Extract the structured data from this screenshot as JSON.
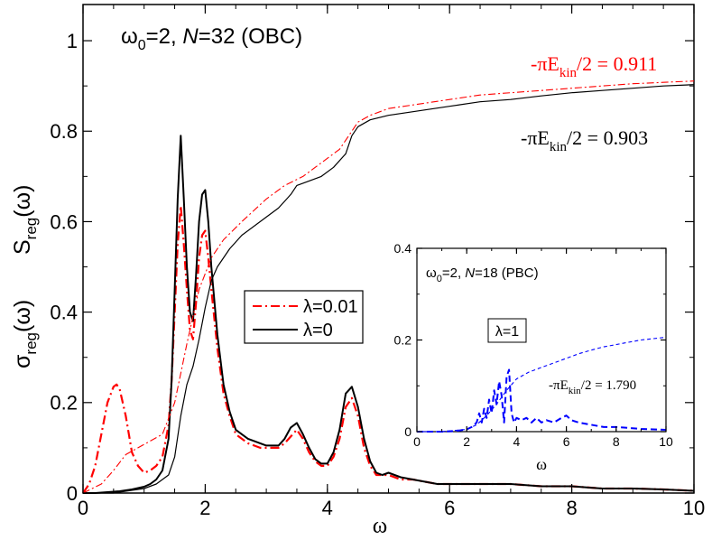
{
  "colors": {
    "axis": "#000000",
    "main_lambda001": "#ff0000",
    "main_lambda0": "#000000",
    "inset_pbc": "#0000ff",
    "annotation_red": "#ff0000",
    "annotation_black": "#000000"
  },
  "main": {
    "title_prefix": "ω",
    "title_sub": "0",
    "title_mid": "=2, ",
    "title_N": "N",
    "title_tail": "=32 (OBC)",
    "xlabel": "ω",
    "ylabel_top_main": "S",
    "ylabel_top_sub": "reg",
    "ylabel_top_tail": "(ω)",
    "ylabel_bot_main": "σ",
    "ylabel_bot_sub": "reg",
    "ylabel_bot_tail": "(ω)",
    "xticks": [
      "0",
      "2",
      "4",
      "6",
      "8",
      "10"
    ],
    "yticks": [
      "0",
      "0.2",
      "0.4",
      "0.6",
      "0.8",
      "1"
    ],
    "ann_red_prefix": "-πE",
    "ann_red_sub": "kin",
    "ann_red_tail": "/2 = 0.911",
    "ann_black_prefix": "-πE",
    "ann_black_sub": "kin",
    "ann_black_tail": "/2 = 0.903",
    "legend": [
      {
        "label": "λ=0.01",
        "style": "dash-dot",
        "color": "#ff0000"
      },
      {
        "label": "λ=0",
        "style": "solid",
        "color": "#000000"
      }
    ]
  },
  "inset": {
    "title_prefix": "ω",
    "title_sub": "0",
    "title_mid": "=2, ",
    "title_N": "N",
    "title_tail": "=18 (PBC)",
    "box_label": "λ=1",
    "xlabel": "ω",
    "xticks": [
      "0",
      "2",
      "4",
      "6",
      "8",
      "10"
    ],
    "yticks": [
      "0",
      "0.2",
      "0.4"
    ],
    "ann_prefix": "-πE",
    "ann_sub": "kin",
    "ann_tail": "/2 = 1.790"
  },
  "chart_data": [
    {
      "type": "line",
      "panel": "main",
      "xlim": [
        0,
        10
      ],
      "ylim": [
        0,
        1.08
      ],
      "grid": false,
      "legend_placement": "center",
      "series": [
        {
          "name": "λ=0.01",
          "kind": "sigma_reg",
          "style": "dash-dot-thick",
          "x": [
            0,
            0.1,
            0.2,
            0.3,
            0.4,
            0.5,
            0.55,
            0.6,
            0.7,
            0.8,
            0.9,
            1.0,
            1.1,
            1.2,
            1.3,
            1.4,
            1.45,
            1.5,
            1.55,
            1.6,
            1.65,
            1.7,
            1.75,
            1.8,
            1.85,
            1.9,
            1.95,
            2.0,
            2.05,
            2.1,
            2.2,
            2.3,
            2.4,
            2.5,
            2.6,
            2.7,
            2.8,
            2.9,
            3.0,
            3.1,
            3.2,
            3.3,
            3.4,
            3.5,
            3.6,
            3.7,
            3.8,
            3.9,
            4.0,
            4.1,
            4.2,
            4.3,
            4.4,
            4.5,
            4.6,
            4.7,
            4.8,
            4.9,
            5.0,
            5.2,
            5.4,
            5.6,
            5.8,
            6.0,
            6.5,
            7.0,
            7.5,
            8.0,
            8.5,
            9.0,
            9.5,
            10.0
          ],
          "y": [
            0.0,
            0.02,
            0.06,
            0.13,
            0.2,
            0.235,
            0.24,
            0.23,
            0.17,
            0.09,
            0.06,
            0.045,
            0.05,
            0.06,
            0.08,
            0.15,
            0.25,
            0.4,
            0.55,
            0.635,
            0.55,
            0.45,
            0.36,
            0.34,
            0.42,
            0.52,
            0.57,
            0.58,
            0.52,
            0.45,
            0.32,
            0.22,
            0.17,
            0.13,
            0.12,
            0.11,
            0.105,
            0.1,
            0.1,
            0.1,
            0.1,
            0.11,
            0.125,
            0.14,
            0.12,
            0.09,
            0.07,
            0.06,
            0.06,
            0.08,
            0.12,
            0.19,
            0.21,
            0.17,
            0.1,
            0.06,
            0.04,
            0.04,
            0.04,
            0.03,
            0.03,
            0.025,
            0.02,
            0.02,
            0.02,
            0.02,
            0.015,
            0.015,
            0.01,
            0.01,
            0.008,
            0.005
          ]
        },
        {
          "name": "λ=0",
          "kind": "sigma_reg",
          "style": "solid",
          "x": [
            0,
            0.2,
            0.4,
            0.6,
            0.8,
            1.0,
            1.1,
            1.2,
            1.3,
            1.4,
            1.45,
            1.5,
            1.55,
            1.6,
            1.65,
            1.7,
            1.75,
            1.8,
            1.85,
            1.9,
            1.95,
            2.0,
            2.05,
            2.1,
            2.2,
            2.3,
            2.4,
            2.5,
            2.6,
            2.7,
            2.8,
            2.9,
            3.0,
            3.1,
            3.2,
            3.3,
            3.4,
            3.5,
            3.6,
            3.7,
            3.8,
            3.9,
            4.0,
            4.1,
            4.2,
            4.3,
            4.4,
            4.5,
            4.6,
            4.7,
            4.8,
            4.9,
            5.0,
            5.2,
            5.4,
            5.6,
            5.8,
            6.0,
            6.5,
            7.0,
            7.5,
            8.0,
            8.5,
            9.0,
            9.5,
            10.0
          ],
          "y": [
            0.0,
            0.0,
            0.002,
            0.004,
            0.008,
            0.014,
            0.02,
            0.03,
            0.05,
            0.12,
            0.25,
            0.45,
            0.65,
            0.79,
            0.65,
            0.5,
            0.4,
            0.38,
            0.48,
            0.6,
            0.66,
            0.67,
            0.6,
            0.5,
            0.35,
            0.24,
            0.18,
            0.14,
            0.13,
            0.12,
            0.115,
            0.11,
            0.105,
            0.105,
            0.105,
            0.12,
            0.145,
            0.155,
            0.13,
            0.1,
            0.075,
            0.065,
            0.065,
            0.09,
            0.14,
            0.22,
            0.235,
            0.19,
            0.12,
            0.07,
            0.045,
            0.04,
            0.045,
            0.035,
            0.03,
            0.025,
            0.02,
            0.02,
            0.02,
            0.02,
            0.015,
            0.015,
            0.01,
            0.01,
            0.008,
            0.005
          ]
        },
        {
          "name": "λ=0.01",
          "kind": "S_reg",
          "style": "dash-dot-thin",
          "x": [
            0,
            0.3,
            0.5,
            0.7,
            0.9,
            1.1,
            1.3,
            1.5,
            1.7,
            1.9,
            2.1,
            2.3,
            2.6,
            3.0,
            3.3,
            3.6,
            3.8,
            4.0,
            4.2,
            4.35,
            4.5,
            4.7,
            5.0,
            5.5,
            6.0,
            6.5,
            7.0,
            7.5,
            8.0,
            8.5,
            9.0,
            9.5,
            10.0
          ],
          "y": [
            0.0,
            0.02,
            0.05,
            0.085,
            0.1,
            0.115,
            0.13,
            0.2,
            0.33,
            0.45,
            0.52,
            0.56,
            0.6,
            0.65,
            0.68,
            0.7,
            0.72,
            0.74,
            0.76,
            0.79,
            0.82,
            0.835,
            0.85,
            0.86,
            0.87,
            0.88,
            0.885,
            0.89,
            0.895,
            0.9,
            0.905,
            0.908,
            0.911
          ]
        },
        {
          "name": "λ=0",
          "kind": "S_reg",
          "style": "solid-thin",
          "x": [
            0,
            0.5,
            1.0,
            1.2,
            1.4,
            1.5,
            1.6,
            1.7,
            1.8,
            1.9,
            2.0,
            2.1,
            2.2,
            2.4,
            2.6,
            3.0,
            3.2,
            3.4,
            3.5,
            3.7,
            3.9,
            4.1,
            4.3,
            4.4,
            4.5,
            4.7,
            5.0,
            5.5,
            6.0,
            6.5,
            7.0,
            7.5,
            8.0,
            8.5,
            9.0,
            9.5,
            10.0
          ],
          "y": [
            0.0,
            0.0,
            0.01,
            0.02,
            0.04,
            0.08,
            0.17,
            0.24,
            0.28,
            0.34,
            0.41,
            0.47,
            0.5,
            0.54,
            0.57,
            0.61,
            0.63,
            0.66,
            0.68,
            0.69,
            0.7,
            0.72,
            0.75,
            0.79,
            0.81,
            0.825,
            0.835,
            0.845,
            0.855,
            0.865,
            0.87,
            0.878,
            0.885,
            0.89,
            0.895,
            0.9,
            0.903
          ]
        }
      ]
    },
    {
      "type": "line",
      "panel": "inset",
      "xlim": [
        0,
        10
      ],
      "ylim": [
        0,
        0.4
      ],
      "grid": false,
      "series": [
        {
          "name": "λ=1",
          "kind": "sigma_reg",
          "style": "dashed",
          "x": [
            0,
            1,
            1.5,
            2.0,
            2.2,
            2.4,
            2.5,
            2.6,
            2.7,
            2.8,
            2.9,
            3.0,
            3.1,
            3.2,
            3.3,
            3.4,
            3.5,
            3.6,
            3.7,
            3.8,
            3.9,
            4.0,
            4.2,
            4.4,
            4.6,
            4.8,
            5.0,
            5.2,
            5.5,
            5.8,
            6.0,
            6.2,
            6.5,
            7.0,
            7.5,
            8.0,
            8.5,
            9.0,
            9.5,
            10.0
          ],
          "y": [
            0.0,
            0.0,
            0.001,
            0.005,
            0.01,
            0.02,
            0.04,
            0.02,
            0.05,
            0.03,
            0.07,
            0.04,
            0.09,
            0.06,
            0.11,
            0.08,
            0.02,
            0.12,
            0.135,
            0.04,
            0.02,
            0.03,
            0.025,
            0.03,
            0.02,
            0.03,
            0.02,
            0.025,
            0.02,
            0.03,
            0.035,
            0.025,
            0.02,
            0.015,
            0.01,
            0.01,
            0.008,
            0.006,
            0.005,
            0.004
          ]
        },
        {
          "name": "λ=1",
          "kind": "S_reg",
          "style": "dashed-thin",
          "x": [
            0,
            1,
            2.0,
            2.4,
            2.8,
            3.2,
            3.6,
            4.0,
            4.5,
            5.0,
            5.5,
            6.0,
            6.5,
            7.0,
            7.5,
            8.0,
            8.5,
            9.0,
            9.5,
            10.0
          ],
          "y": [
            0.0,
            0.0,
            0.005,
            0.015,
            0.035,
            0.06,
            0.09,
            0.115,
            0.13,
            0.14,
            0.15,
            0.16,
            0.17,
            0.178,
            0.185,
            0.19,
            0.195,
            0.2,
            0.203,
            0.206
          ]
        }
      ]
    }
  ]
}
